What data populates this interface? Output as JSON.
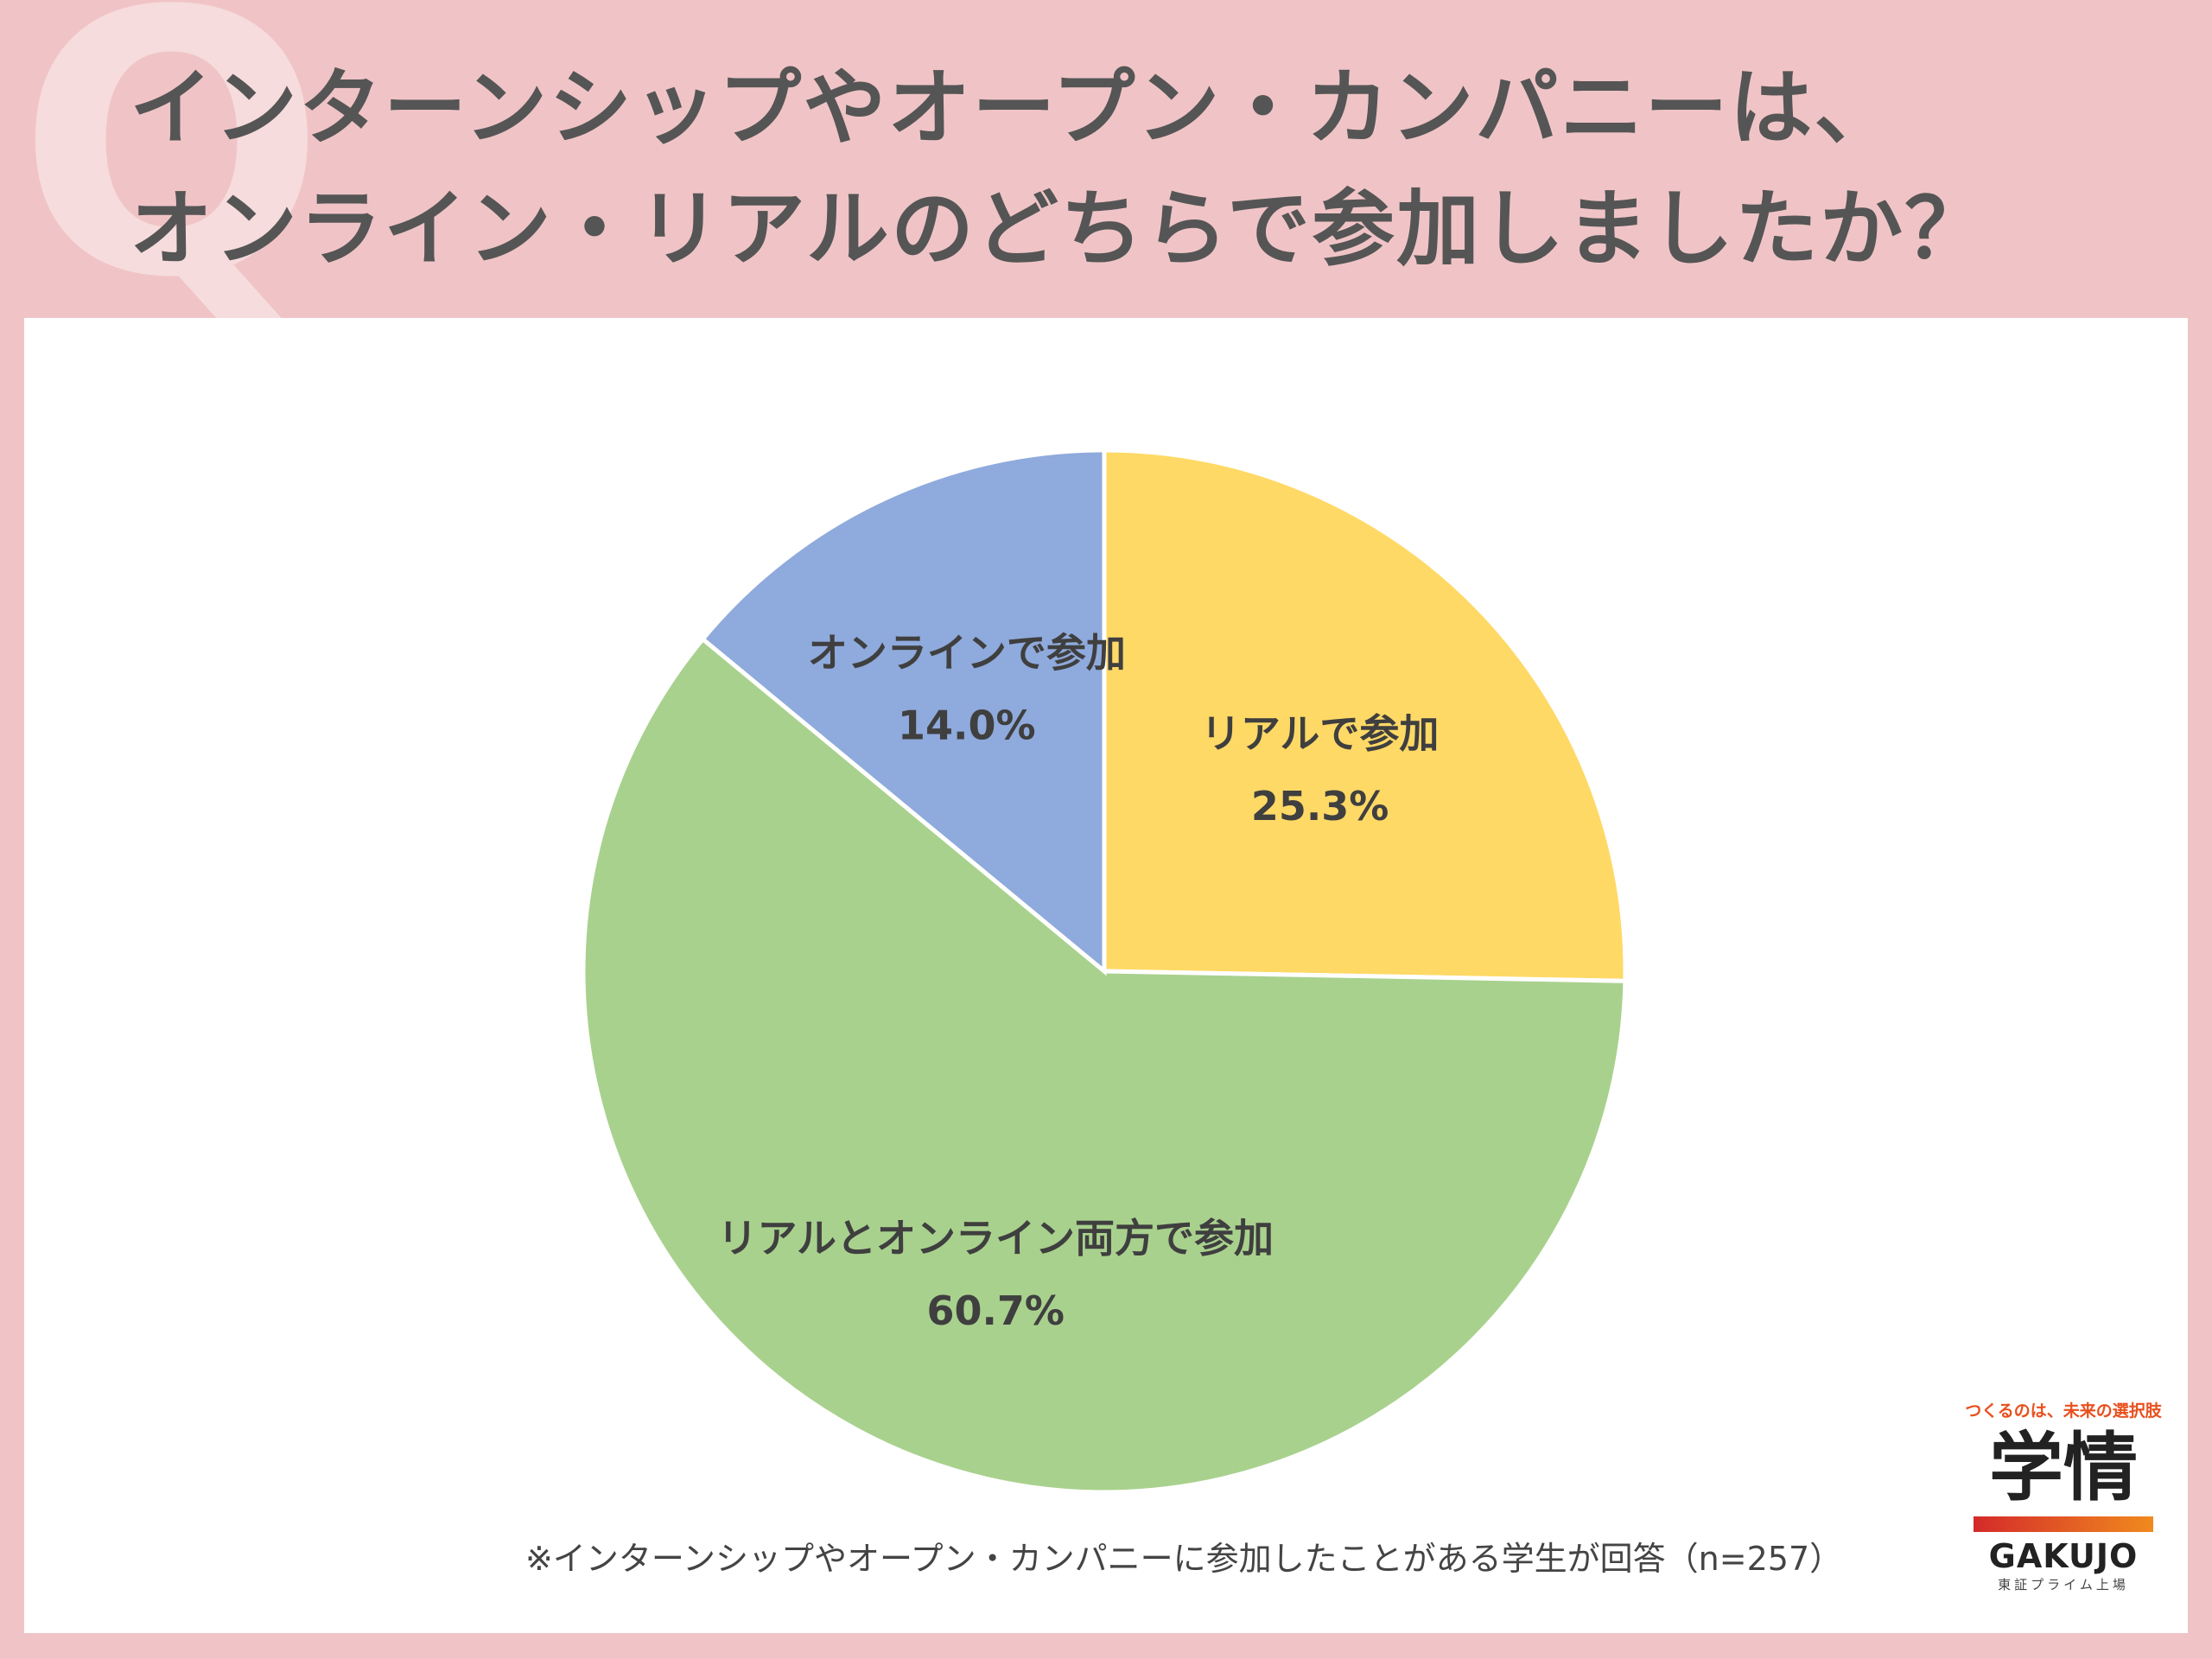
{
  "header": {
    "q_mark": "Q",
    "title_line1": "インターンシップやオープン・カンパニーは、",
    "title_line2": "オンライン・リアルのどちらで参加しましたか？"
  },
  "chart_data": {
    "type": "pie",
    "start_angle_deg": 0,
    "direction": "clockwise",
    "slices": [
      {
        "label": "リアルで参加",
        "value": 25.3,
        "value_label": "25.3%",
        "color": "#ffd966"
      },
      {
        "label": "リアルとオンライン両方で参加",
        "value": 60.7,
        "value_label": "60.7%",
        "color": "#a9d18e"
      },
      {
        "label": "オンラインで参加",
        "value": 14.0,
        "value_label": "14.0%",
        "color": "#8faadc"
      }
    ]
  },
  "footnote": "※インターンシップやオープン・カンパニーに参加したことがある学生が回答（n=257）",
  "logo": {
    "tagline": "つくるのは、未来の選択肢",
    "mark": "学情",
    "en": "GAKUJO",
    "sub": "東証プライム上場"
  }
}
